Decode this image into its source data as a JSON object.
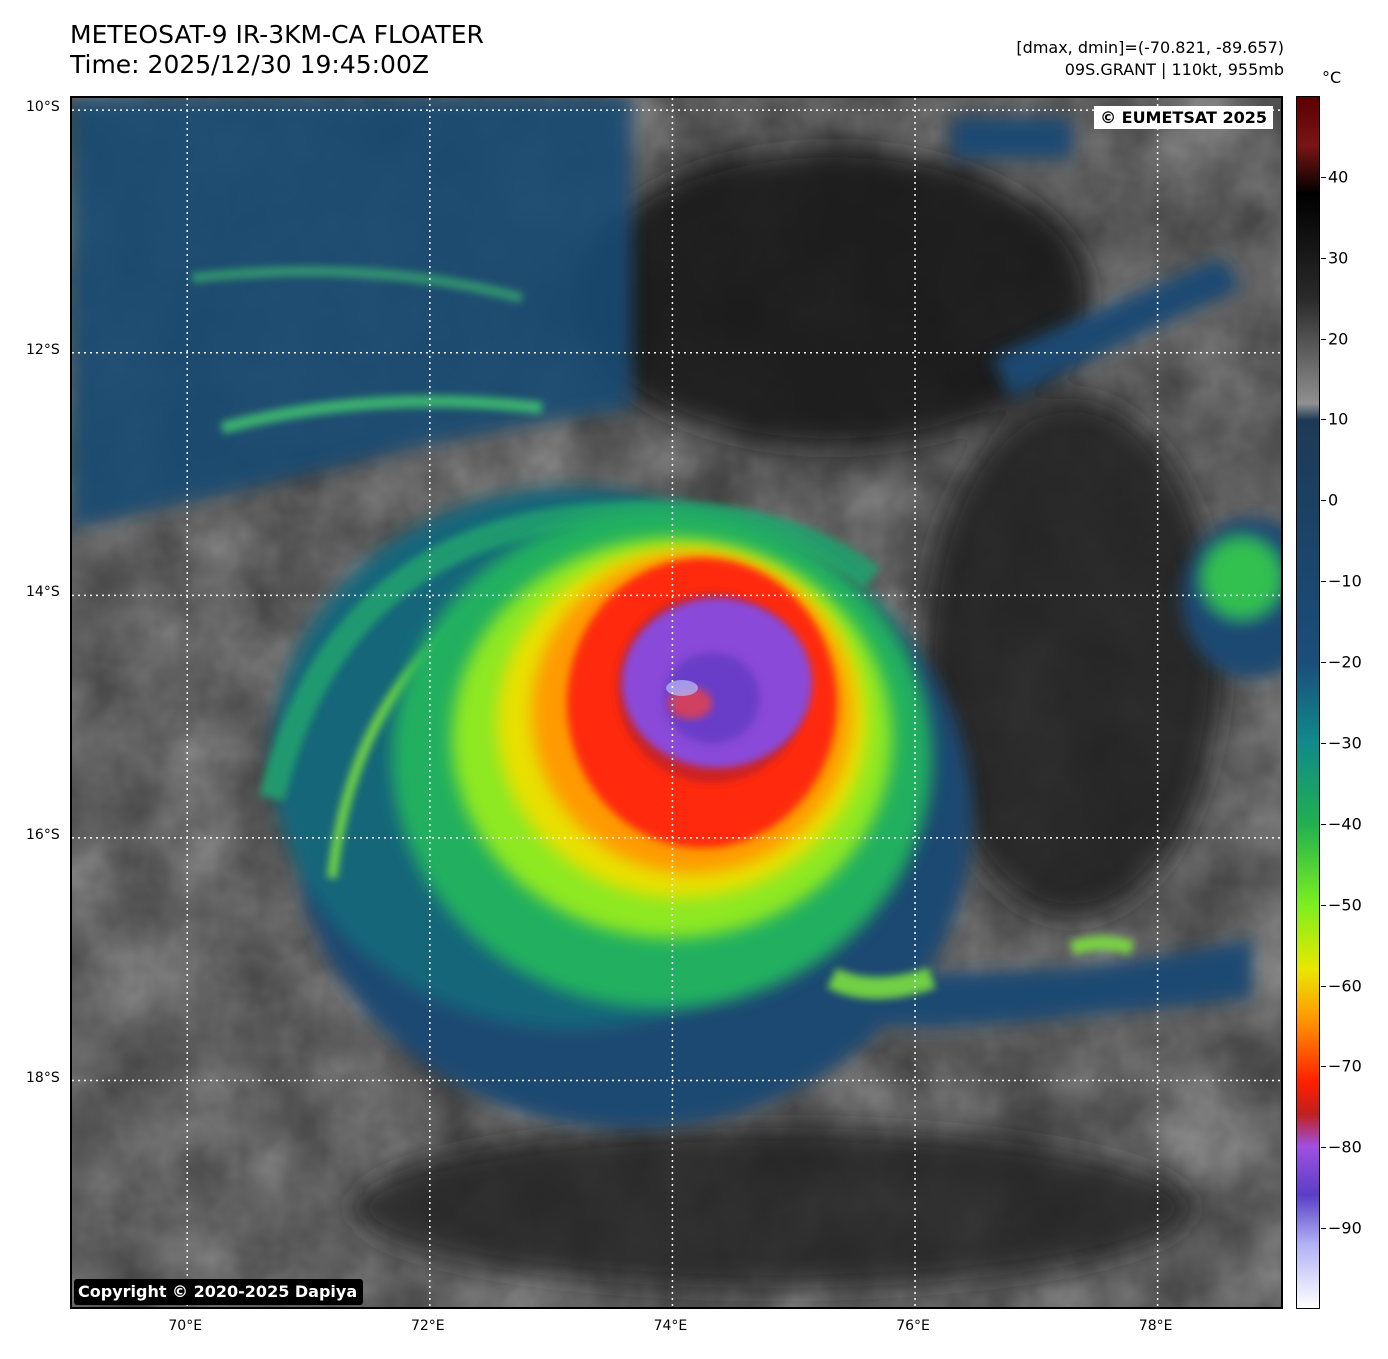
{
  "header": {
    "title_line1": "METEOSAT-9 IR-3KM-CA FLOATER",
    "title_line2": "Time: 2025/12/30 19:45:00Z",
    "range_text": "[dmax, dmin]=(-70.821, -89.657)",
    "storm_text": "09S.GRANT | 110kt, 955mb"
  },
  "map": {
    "watermark": "© EUMETSAT 2025",
    "copyright": "Copyright © 2020-2025 Dapiya",
    "lat_labels": [
      "10°S",
      "12°S",
      "14°S",
      "16°S",
      "18°S"
    ],
    "lon_labels": [
      "70°E",
      "72°E",
      "74°E",
      "76°E",
      "78°E"
    ],
    "lon_extent": [
      69.05,
      79.05
    ],
    "lat_extent": [
      -9.9,
      -19.9
    ]
  },
  "colorbar": {
    "unit": "°C",
    "labels": [
      "40",
      "30",
      "20",
      "10",
      "0",
      "−10",
      "−20",
      "−30",
      "−40",
      "−50",
      "−60",
      "−70",
      "−80",
      "−90"
    ],
    "label_values": [
      40,
      30,
      20,
      10,
      0,
      -10,
      -20,
      -30,
      -40,
      -50,
      -60,
      -70,
      -80,
      -90
    ],
    "vmin": -100,
    "vmax": 50,
    "stops": [
      {
        "v": 50,
        "color": "#5a0000"
      },
      {
        "v": 44,
        "color": "#7a1515"
      },
      {
        "v": 38,
        "color": "#000000"
      },
      {
        "v": 25,
        "color": "#2a2a2a"
      },
      {
        "v": 12,
        "color": "#909090"
      },
      {
        "v": 10,
        "color": "#1c3a55"
      },
      {
        "v": -20,
        "color": "#1a4e7a"
      },
      {
        "v": -30,
        "color": "#108a8a"
      },
      {
        "v": -40,
        "color": "#20b050"
      },
      {
        "v": -50,
        "color": "#7cee20"
      },
      {
        "v": -58,
        "color": "#e8e800"
      },
      {
        "v": -64,
        "color": "#ff9a00"
      },
      {
        "v": -72,
        "color": "#ff2000"
      },
      {
        "v": -76,
        "color": "#c02020"
      },
      {
        "v": -80,
        "color": "#a050e0"
      },
      {
        "v": -86,
        "color": "#5a3ec8"
      },
      {
        "v": -92,
        "color": "#b0b0f5"
      },
      {
        "v": -100,
        "color": "#ffffff"
      }
    ]
  },
  "storm": {
    "center_lon": 74.1,
    "center_lat": -14.9
  }
}
